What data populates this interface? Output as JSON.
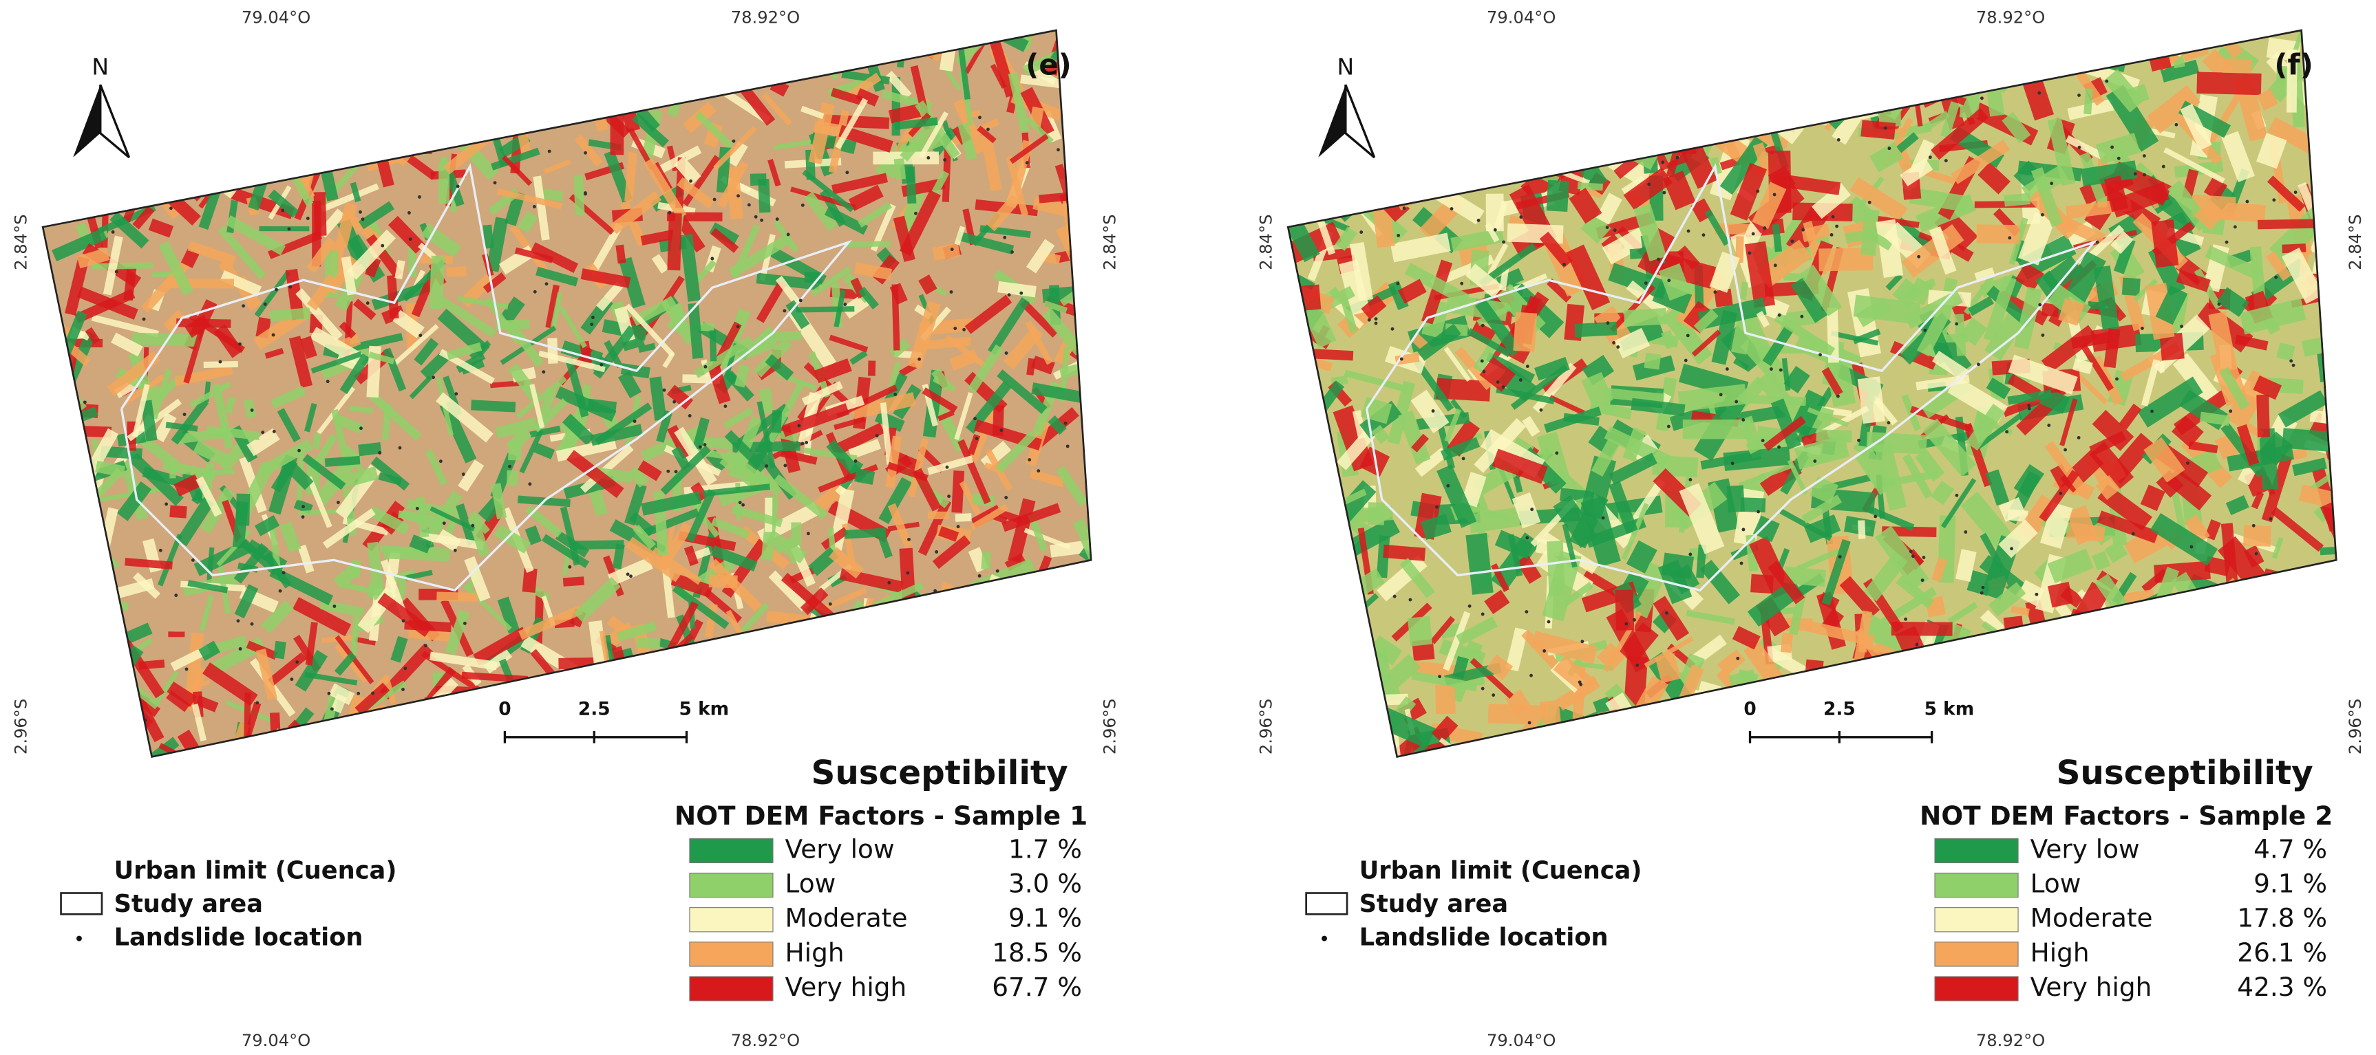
{
  "panels": [
    {
      "label": "(e)",
      "north": "N",
      "top_lon": [
        "79.04°O",
        "78.92°O"
      ],
      "bottom_lon": [
        "79.04°O",
        "78.92°O"
      ],
      "left_lat": [
        "2.84°S",
        "2.96°S"
      ],
      "right_lat": [
        "2.84°S",
        "2.96°S"
      ],
      "scale": [
        "0",
        "2.5",
        "5 km"
      ],
      "reference": {
        "title": "Urban limit (Cuenca)",
        "items": [
          "Study area",
          "Landslide location"
        ]
      },
      "legend": {
        "title": "Susceptibility",
        "subtitle": "NOT DEM Factors - Sample 1",
        "classes": [
          {
            "label": "Very low",
            "percent": "1.7 %",
            "color": "#1e9a4a"
          },
          {
            "label": "Low",
            "percent": "3.0 %",
            "color": "#8fd06a"
          },
          {
            "label": "Moderate",
            "percent": "9.1 %",
            "color": "#fbf6c0"
          },
          {
            "label": "High",
            "percent": "18.5 %",
            "color": "#f5a65b"
          },
          {
            "label": "Very high",
            "percent": "67.7 %",
            "color": "#d7191c"
          }
        ]
      }
    },
    {
      "label": "(f)",
      "north": "N",
      "top_lon": [
        "79.04°O",
        "78.92°O"
      ],
      "bottom_lon": [
        "79.04°O",
        "78.92°O"
      ],
      "left_lat": [
        "2.84°S",
        "2.96°S"
      ],
      "right_lat": [
        "2.84°S",
        "2.96°S"
      ],
      "scale": [
        "0",
        "2.5",
        "5 km"
      ],
      "reference": {
        "title": "Urban limit (Cuenca)",
        "items": [
          "Study area",
          "Landslide location"
        ]
      },
      "legend": {
        "title": "Susceptibility",
        "subtitle": "NOT DEM Factors - Sample 2",
        "classes": [
          {
            "label": "Very low",
            "percent": "4.7 %",
            "color": "#1e9a4a"
          },
          {
            "label": "Low",
            "percent": "9.1 %",
            "color": "#8fd06a"
          },
          {
            "label": "Moderate",
            "percent": "17.8 %",
            "color": "#fbf6c0"
          },
          {
            "label": "High",
            "percent": "26.1 %",
            "color": "#f5a65b"
          },
          {
            "label": "Very high",
            "percent": "42.3 %",
            "color": "#d7191c"
          }
        ]
      }
    }
  ]
}
